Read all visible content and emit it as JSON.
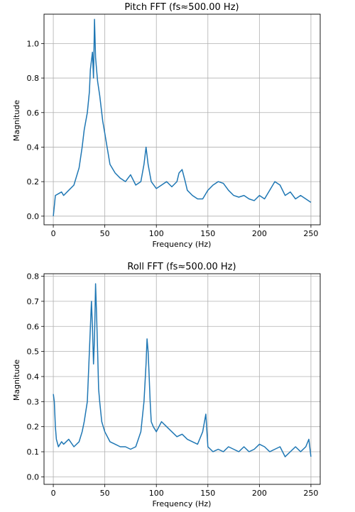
{
  "chart_data": [
    {
      "type": "line",
      "title": "Pitch FFT (fs≈500.00 Hz)",
      "xlabel": "Frequency (Hz)",
      "ylabel": "Magnitude",
      "xlim": [
        -9,
        259
      ],
      "ylim": [
        -0.05,
        1.17
      ],
      "xticks": [
        0,
        50,
        100,
        150,
        200,
        250
      ],
      "yticks": [
        0.0,
        0.2,
        0.4,
        0.6,
        0.8,
        1.0
      ],
      "ytick_format": 1,
      "grid": true,
      "line_color": "#1f77b4",
      "series": [
        {
          "x": [
            0,
            2,
            5,
            8,
            10,
            15,
            20,
            25,
            28,
            30,
            33,
            35,
            36,
            38,
            39,
            40,
            41,
            42,
            43,
            45,
            48,
            50,
            55,
            60,
            65,
            70,
            75,
            80,
            85,
            88,
            90,
            92,
            95,
            100,
            105,
            110,
            115,
            120,
            122,
            125,
            128,
            130,
            135,
            140,
            145,
            150,
            155,
            160,
            165,
            170,
            175,
            180,
            185,
            190,
            195,
            200,
            205,
            210,
            215,
            220,
            225,
            230,
            235,
            240,
            245,
            250
          ],
          "y": [
            0.0,
            0.12,
            0.13,
            0.14,
            0.12,
            0.15,
            0.18,
            0.28,
            0.4,
            0.5,
            0.6,
            0.72,
            0.85,
            0.95,
            0.8,
            1.14,
            0.92,
            0.85,
            0.78,
            0.7,
            0.55,
            0.48,
            0.3,
            0.25,
            0.22,
            0.2,
            0.24,
            0.18,
            0.2,
            0.3,
            0.4,
            0.3,
            0.2,
            0.16,
            0.18,
            0.2,
            0.17,
            0.2,
            0.25,
            0.27,
            0.2,
            0.15,
            0.12,
            0.1,
            0.1,
            0.15,
            0.18,
            0.2,
            0.19,
            0.15,
            0.12,
            0.11,
            0.12,
            0.1,
            0.09,
            0.12,
            0.1,
            0.15,
            0.2,
            0.18,
            0.12,
            0.14,
            0.1,
            0.12,
            0.1,
            0.08
          ]
        }
      ]
    },
    {
      "type": "line",
      "title": "Roll FFT (fs≈500.00 Hz)",
      "xlabel": "Frequency (Hz)",
      "ylabel": "Magnitude",
      "xlim": [
        -9,
        259
      ],
      "ylim": [
        -0.03,
        0.81
      ],
      "xticks": [
        0,
        50,
        100,
        150,
        200,
        250
      ],
      "yticks": [
        0.0,
        0.1,
        0.2,
        0.3,
        0.4,
        0.5,
        0.6,
        0.7,
        0.8
      ],
      "ytick_format": 1,
      "grid": true,
      "line_color": "#1f77b4",
      "series": [
        {
          "x": [
            0,
            1,
            2,
            3,
            5,
            8,
            10,
            15,
            20,
            25,
            28,
            30,
            33,
            35,
            37,
            38,
            39,
            40,
            41,
            42,
            43,
            44,
            45,
            47,
            50,
            55,
            60,
            65,
            70,
            75,
            80,
            85,
            88,
            90,
            91,
            92,
            93,
            94,
            95,
            97,
            100,
            105,
            110,
            115,
            120,
            125,
            130,
            135,
            140,
            145,
            148,
            150,
            155,
            160,
            165,
            170,
            175,
            180,
            185,
            190,
            195,
            200,
            205,
            210,
            215,
            220,
            225,
            230,
            235,
            240,
            245,
            248,
            250
          ],
          "y": [
            0.33,
            0.3,
            0.2,
            0.15,
            0.12,
            0.14,
            0.13,
            0.15,
            0.12,
            0.14,
            0.18,
            0.22,
            0.3,
            0.5,
            0.7,
            0.6,
            0.45,
            0.55,
            0.77,
            0.65,
            0.5,
            0.35,
            0.3,
            0.22,
            0.18,
            0.14,
            0.13,
            0.12,
            0.12,
            0.11,
            0.12,
            0.18,
            0.3,
            0.45,
            0.55,
            0.5,
            0.4,
            0.3,
            0.22,
            0.2,
            0.18,
            0.22,
            0.2,
            0.18,
            0.16,
            0.17,
            0.15,
            0.14,
            0.13,
            0.18,
            0.25,
            0.12,
            0.1,
            0.11,
            0.1,
            0.12,
            0.11,
            0.1,
            0.12,
            0.1,
            0.11,
            0.13,
            0.12,
            0.1,
            0.11,
            0.12,
            0.08,
            0.1,
            0.12,
            0.1,
            0.12,
            0.15,
            0.08
          ]
        }
      ]
    }
  ]
}
